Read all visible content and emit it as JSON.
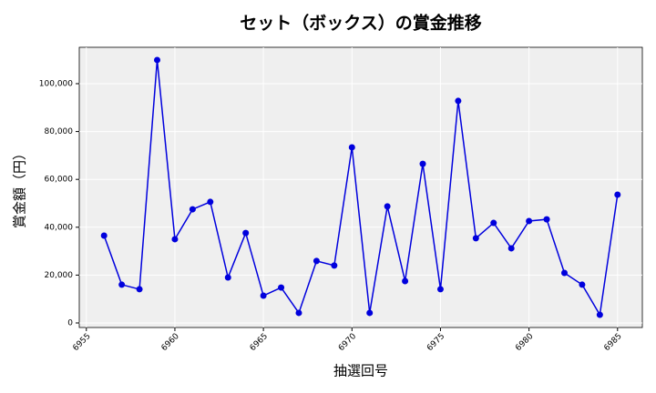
{
  "chart_data": {
    "type": "line",
    "title": "セット（ボックス）の賞金推移",
    "x_label": "抽選回号",
    "y_label": "賞金額（円）",
    "x": [
      6956,
      6957,
      6958,
      6959,
      6960,
      6961,
      6962,
      6963,
      6964,
      6965,
      6966,
      6967,
      6968,
      6969,
      6970,
      6971,
      6972,
      6973,
      6974,
      6975,
      6976,
      6977,
      6978,
      6979,
      6980,
      6981,
      6982,
      6983,
      6984,
      6985
    ],
    "series": [
      {
        "color": "#0000dd",
        "values": [
          36500,
          16000,
          14100,
          109900,
          35000,
          47500,
          50600,
          19000,
          37600,
          11400,
          14800,
          4200,
          25900,
          24000,
          73400,
          4200,
          48700,
          17500,
          66500,
          14100,
          92800,
          35400,
          41800,
          31200,
          42600,
          43300,
          20900,
          16000,
          3400,
          53600
        ]
      }
    ],
    "xlim": [
      6954.6,
      6986.4
    ],
    "xticks": [
      6955,
      6960,
      6965,
      6970,
      6975,
      6980,
      6985
    ],
    "ylim": [
      -1900,
      115200
    ],
    "yticks": [
      0,
      {
        "value": 20000,
        "label": "20,000"
      },
      {
        "value": 40000,
        "label": "40,000"
      },
      {
        "value": 60000,
        "label": "60,000"
      },
      {
        "value": 80000,
        "label": "80,000"
      },
      {
        "value": 100000,
        "label": "100,000"
      }
    ],
    "grid": true
  }
}
